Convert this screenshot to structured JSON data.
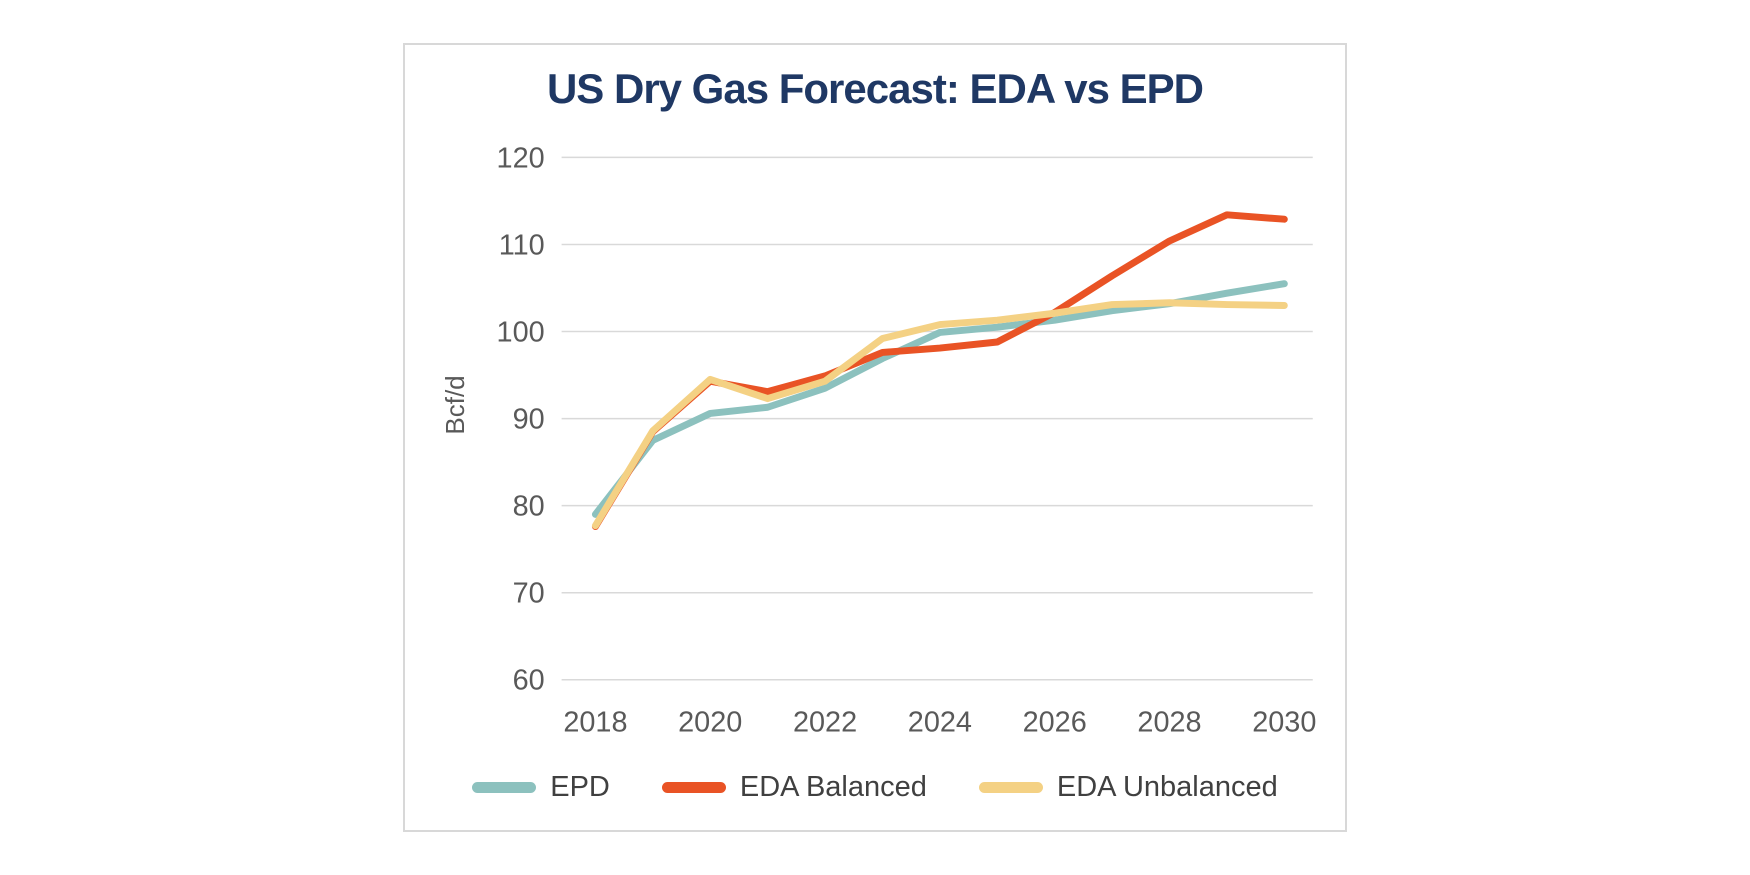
{
  "panel": {
    "background": "#ffffff",
    "border_color": "#d8d8d8"
  },
  "chart_data": {
    "type": "line",
    "title": "US Dry Gas Forecast: EDA vs EPD",
    "title_color": "#1f3864",
    "xlabel": "",
    "ylabel": "Bcf/d",
    "x": [
      2018,
      2019,
      2020,
      2021,
      2022,
      2023,
      2024,
      2025,
      2026,
      2027,
      2028,
      2029,
      2030
    ],
    "x_tick_labels": [
      "2018",
      "2020",
      "2022",
      "2024",
      "2026",
      "2028",
      "2030"
    ],
    "y_ticks": [
      60,
      70,
      80,
      90,
      100,
      110,
      120
    ],
    "ylim": [
      60,
      120
    ],
    "grid": "horizontal-only",
    "gridline_color": "#d9d9d9",
    "axis_text_color": "#595959",
    "legend_position": "bottom",
    "legend_text_color": "#404040",
    "series": [
      {
        "name": "EPD",
        "color": "#8cc1be",
        "values": [
          79.0,
          87.5,
          90.6,
          91.3,
          93.5,
          96.9,
          99.9,
          100.5,
          101.3,
          102.4,
          103.2,
          104.4,
          105.5
        ]
      },
      {
        "name": "EDA Balanced",
        "color": "#e95325",
        "values": [
          77.6,
          88.5,
          94.3,
          93.1,
          94.9,
          97.6,
          98.1,
          98.8,
          102.2,
          106.4,
          110.4,
          113.4,
          112.9
        ]
      },
      {
        "name": "EDA Unbalanced",
        "color": "#f4d184",
        "values": [
          77.7,
          88.6,
          94.5,
          92.3,
          94.3,
          99.2,
          100.8,
          101.3,
          102.1,
          103.1,
          103.3,
          103.1,
          103.0
        ]
      }
    ]
  }
}
